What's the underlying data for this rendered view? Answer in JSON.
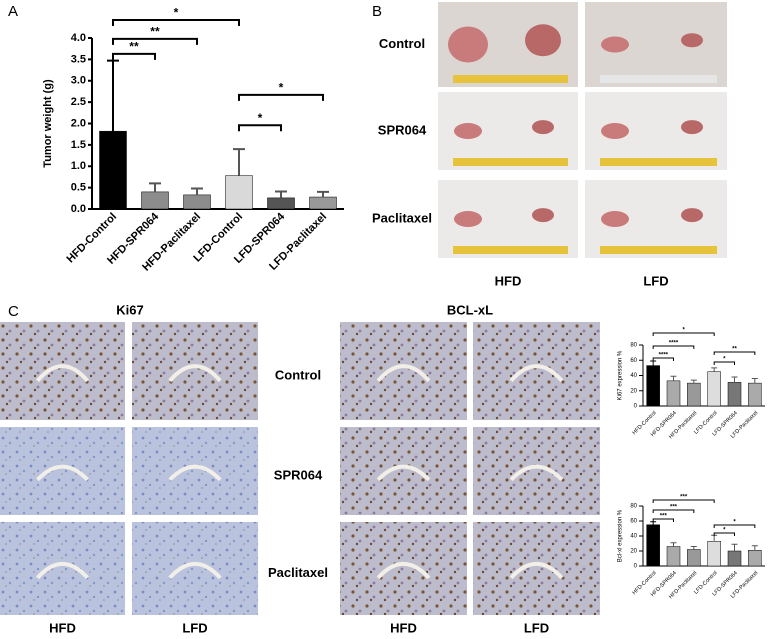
{
  "panel_labels": [
    "A",
    "B",
    "C"
  ],
  "tumor_photos": {
    "rows": [
      "Control",
      "SPR064",
      "Paclitaxel"
    ],
    "columns": [
      "HFD",
      "LFD"
    ]
  },
  "ihc": {
    "stains": [
      "Ki67",
      "BCL-xL"
    ],
    "rows": [
      "Control",
      "SPR064",
      "Paclitaxel"
    ],
    "columns": [
      "HFD",
      "LFD"
    ]
  },
  "chart_data": [
    {
      "type": "bar",
      "y_label": "Tumor weight (g)",
      "categories": [
        "HFD-Control",
        "HFD-SPR064",
        "HFD-Paclitaxel",
        "LFD-Control",
        "LFD-SPR064",
        "LFD-Paclitaxel"
      ],
      "values": [
        1.82,
        0.4,
        0.33,
        0.78,
        0.26,
        0.28
      ],
      "errors": [
        1.65,
        0.2,
        0.15,
        0.62,
        0.15,
        0.12
      ],
      "colors": [
        "#000000",
        "#8c8c8c",
        "#8c8c8c",
        "#d9d9d9",
        "#555555",
        "#999999"
      ],
      "ylim": [
        0,
        4
      ],
      "yticks": [
        {
          "value": 0,
          "label": "0.0"
        },
        0.5,
        {
          "value": 1,
          "label": "1.0"
        },
        1.5,
        {
          "value": 2,
          "label": "2.0"
        },
        2.5,
        {
          "value": 3,
          "label": "3.0"
        },
        3.5,
        {
          "value": 4,
          "label": "4.0"
        }
      ],
      "brackets": [
        {
          "label": "*",
          "between": [
            "HFD-Control",
            "LFD-Control"
          ],
          "y": 4.42
        },
        {
          "label": "**",
          "between": [
            "HFD-Control",
            "HFD-Paclitaxel"
          ],
          "y": 3.98
        },
        {
          "label": "**",
          "between": [
            "HFD-Control",
            "HFD-SPR064"
          ],
          "y": 3.63
        },
        {
          "label": "*",
          "between": [
            "LFD-Control",
            "LFD-Paclitaxel"
          ],
          "y": 2.67
        },
        {
          "label": "*",
          "between": [
            "LFD-Control",
            "LFD-SPR064"
          ],
          "y": 1.96
        }
      ]
    },
    {
      "type": "bar",
      "y_label": "Ki67 expression %",
      "categories": [
        "HFD-Control",
        "HFD-SPR064",
        "HFD-Paclitaxel",
        "LFD-Control",
        "LFD-SPR064",
        "LFD-Paclitaxel"
      ],
      "values": [
        53,
        33,
        30,
        45,
        31,
        30
      ],
      "errors": [
        6,
        6,
        4,
        5,
        7,
        6
      ],
      "colors": [
        "#000000",
        "#aaaaaa",
        "#999999",
        "#dddddd",
        "#777777",
        "#aaaaaa"
      ],
      "ylim": [
        0,
        80
      ],
      "yticks": [
        0,
        20,
        40,
        60,
        80
      ],
      "brackets": [
        {
          "label": "*",
          "between": [
            "HFD-Control",
            "LFD-Control"
          ],
          "y": 95.7
        },
        {
          "label": "****",
          "between": [
            "HFD-Control",
            "HFD-Paclitaxel"
          ],
          "y": 78.7
        },
        {
          "label": "****",
          "between": [
            "HFD-Control",
            "HFD-SPR064"
          ],
          "y": 63
        },
        {
          "label": "**",
          "between": [
            "LFD-Control",
            "LFD-Paclitaxel"
          ],
          "y": 70.8
        },
        {
          "label": "*",
          "between": [
            "LFD-Control",
            "LFD-SPR064"
          ],
          "y": 57.7
        }
      ]
    },
    {
      "type": "bar",
      "y_label": "Bcl-xl expression %",
      "categories": [
        "HFD-Control",
        "HFD-SPR064",
        "HFD-Paclitaxel",
        "LFD-Control",
        "LFD-SPR064",
        "LFD-Paclitaxel"
      ],
      "values": [
        55,
        26,
        22,
        33,
        20,
        21
      ],
      "errors": [
        4,
        5,
        4,
        8,
        9,
        6
      ],
      "colors": [
        "#000000",
        "#aaaaaa",
        "#999999",
        "#dddddd",
        "#777777",
        "#aaaaaa"
      ],
      "ylim": [
        0,
        80
      ],
      "yticks": [
        0,
        20,
        40,
        60,
        80
      ],
      "brackets": [
        {
          "label": "***",
          "between": [
            "HFD-Control",
            "LFD-Control"
          ],
          "y": 88
        },
        {
          "label": "***",
          "between": [
            "HFD-Control",
            "HFD-Paclitaxel"
          ],
          "y": 74.7
        },
        {
          "label": "***",
          "between": [
            "HFD-Control",
            "HFD-SPR064"
          ],
          "y": 62.7
        },
        {
          "label": "*",
          "between": [
            "LFD-Control",
            "LFD-Paclitaxel"
          ],
          "y": 54.7
        },
        {
          "label": "*",
          "between": [
            "LFD-Control",
            "LFD-SPR064"
          ],
          "y": 44
        }
      ]
    }
  ]
}
